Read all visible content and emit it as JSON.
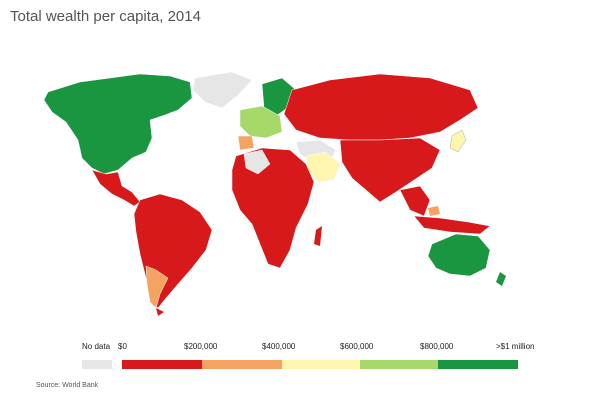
{
  "title": "Total wealth per capita, 2014",
  "source": "Source: World Bank",
  "legend": {
    "no_data_label": "No data",
    "no_data_color": "#e6e6e6",
    "tick_labels": [
      "$0",
      "$200,000",
      "$400,000",
      "$600,000",
      "$800,000",
      ">$1 million"
    ],
    "bins": [
      {
        "range": "$0–$200,000",
        "color": "#d7191c"
      },
      {
        "range": "$200,000–$400,000",
        "color": "#f4a460"
      },
      {
        "range": "$400,000–$600,000",
        "color": "#fdf5b0"
      },
      {
        "range": "$600,000–$800,000",
        "color": "#a6d96a"
      },
      {
        "range": "$800,000–>$1 million",
        "color": "#1a9641"
      }
    ]
  }
}
